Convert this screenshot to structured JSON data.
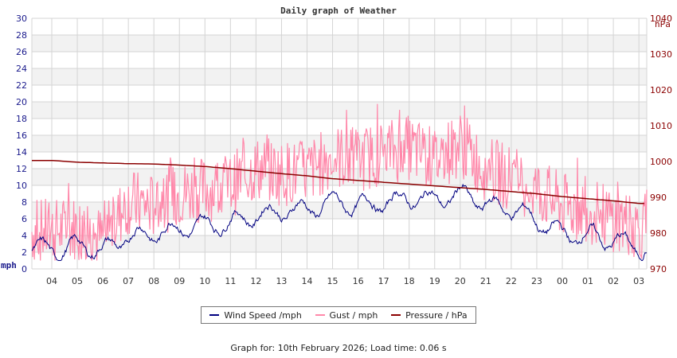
{
  "chart_data": {
    "type": "line",
    "title": "Daily graph of Weather",
    "xlabel": "",
    "ylabel": "mph",
    "y2label": "hPa",
    "ylim": [
      0,
      30
    ],
    "y2lim": [
      970,
      1040
    ],
    "yticks": [
      0,
      2,
      4,
      6,
      8,
      10,
      12,
      14,
      16,
      18,
      20,
      22,
      24,
      26,
      28,
      30
    ],
    "y2ticks": [
      970,
      980,
      990,
      1000,
      1010,
      1020,
      1030,
      1040
    ],
    "categories": [
      "04",
      "05",
      "06",
      "07",
      "08",
      "09",
      "10",
      "11",
      "12",
      "13",
      "14",
      "15",
      "16",
      "17",
      "18",
      "19",
      "20",
      "21",
      "22",
      "23",
      "00",
      "01",
      "02",
      "03"
    ],
    "grid": true,
    "legend_position": "bottom",
    "series": [
      {
        "name": "Wind Speed /mph",
        "axis": "left",
        "color": "#000080",
        "values": [
          2.2,
          2.8,
          2.3,
          4.0,
          4.3,
          5.0,
          5.2,
          5.8,
          6.5,
          7.0,
          7.2,
          8.0,
          7.5,
          8.0,
          8.5,
          8.3,
          9.0,
          7.5,
          7.2,
          5.5,
          4.0,
          4.0,
          3.3,
          2.5
        ]
      },
      {
        "name": "Gust / mph",
        "axis": "left",
        "color": "#ff88aa",
        "values": [
          4.5,
          5.0,
          3.5,
          8.0,
          7.5,
          9.0,
          9.5,
          10.0,
          12.0,
          11.5,
          11.5,
          13.5,
          13.0,
          14.0,
          14.5,
          13.0,
          15.0,
          12.0,
          11.0,
          9.5,
          7.5,
          7.0,
          6.0,
          5.0
        ]
      },
      {
        "name": "Pressure / hPa",
        "axis": "right",
        "color": "#8b0000",
        "values": [
          1000.3,
          999.8,
          999.6,
          999.4,
          999.3,
          999.0,
          998.6,
          998.0,
          997.3,
          996.6,
          996.0,
          995.2,
          994.7,
          994.2,
          993.7,
          993.2,
          992.7,
          992.2,
          991.6,
          991.0,
          990.2,
          989.6,
          989.0,
          988.3
        ]
      }
    ]
  },
  "chart": {
    "title": "Daily graph of Weather",
    "ylabel": "mph",
    "y2label": "hPa"
  },
  "legend": {
    "items": [
      {
        "label": "Wind Speed /mph",
        "color": "#000080"
      },
      {
        "label": "Gust / mph",
        "color": "#ff88aa"
      },
      {
        "label": "Pressure / hPa",
        "color": "#8b0000"
      }
    ]
  },
  "footer": {
    "text": "Graph for: 10th February 2026; Load time: 0.06 s"
  }
}
